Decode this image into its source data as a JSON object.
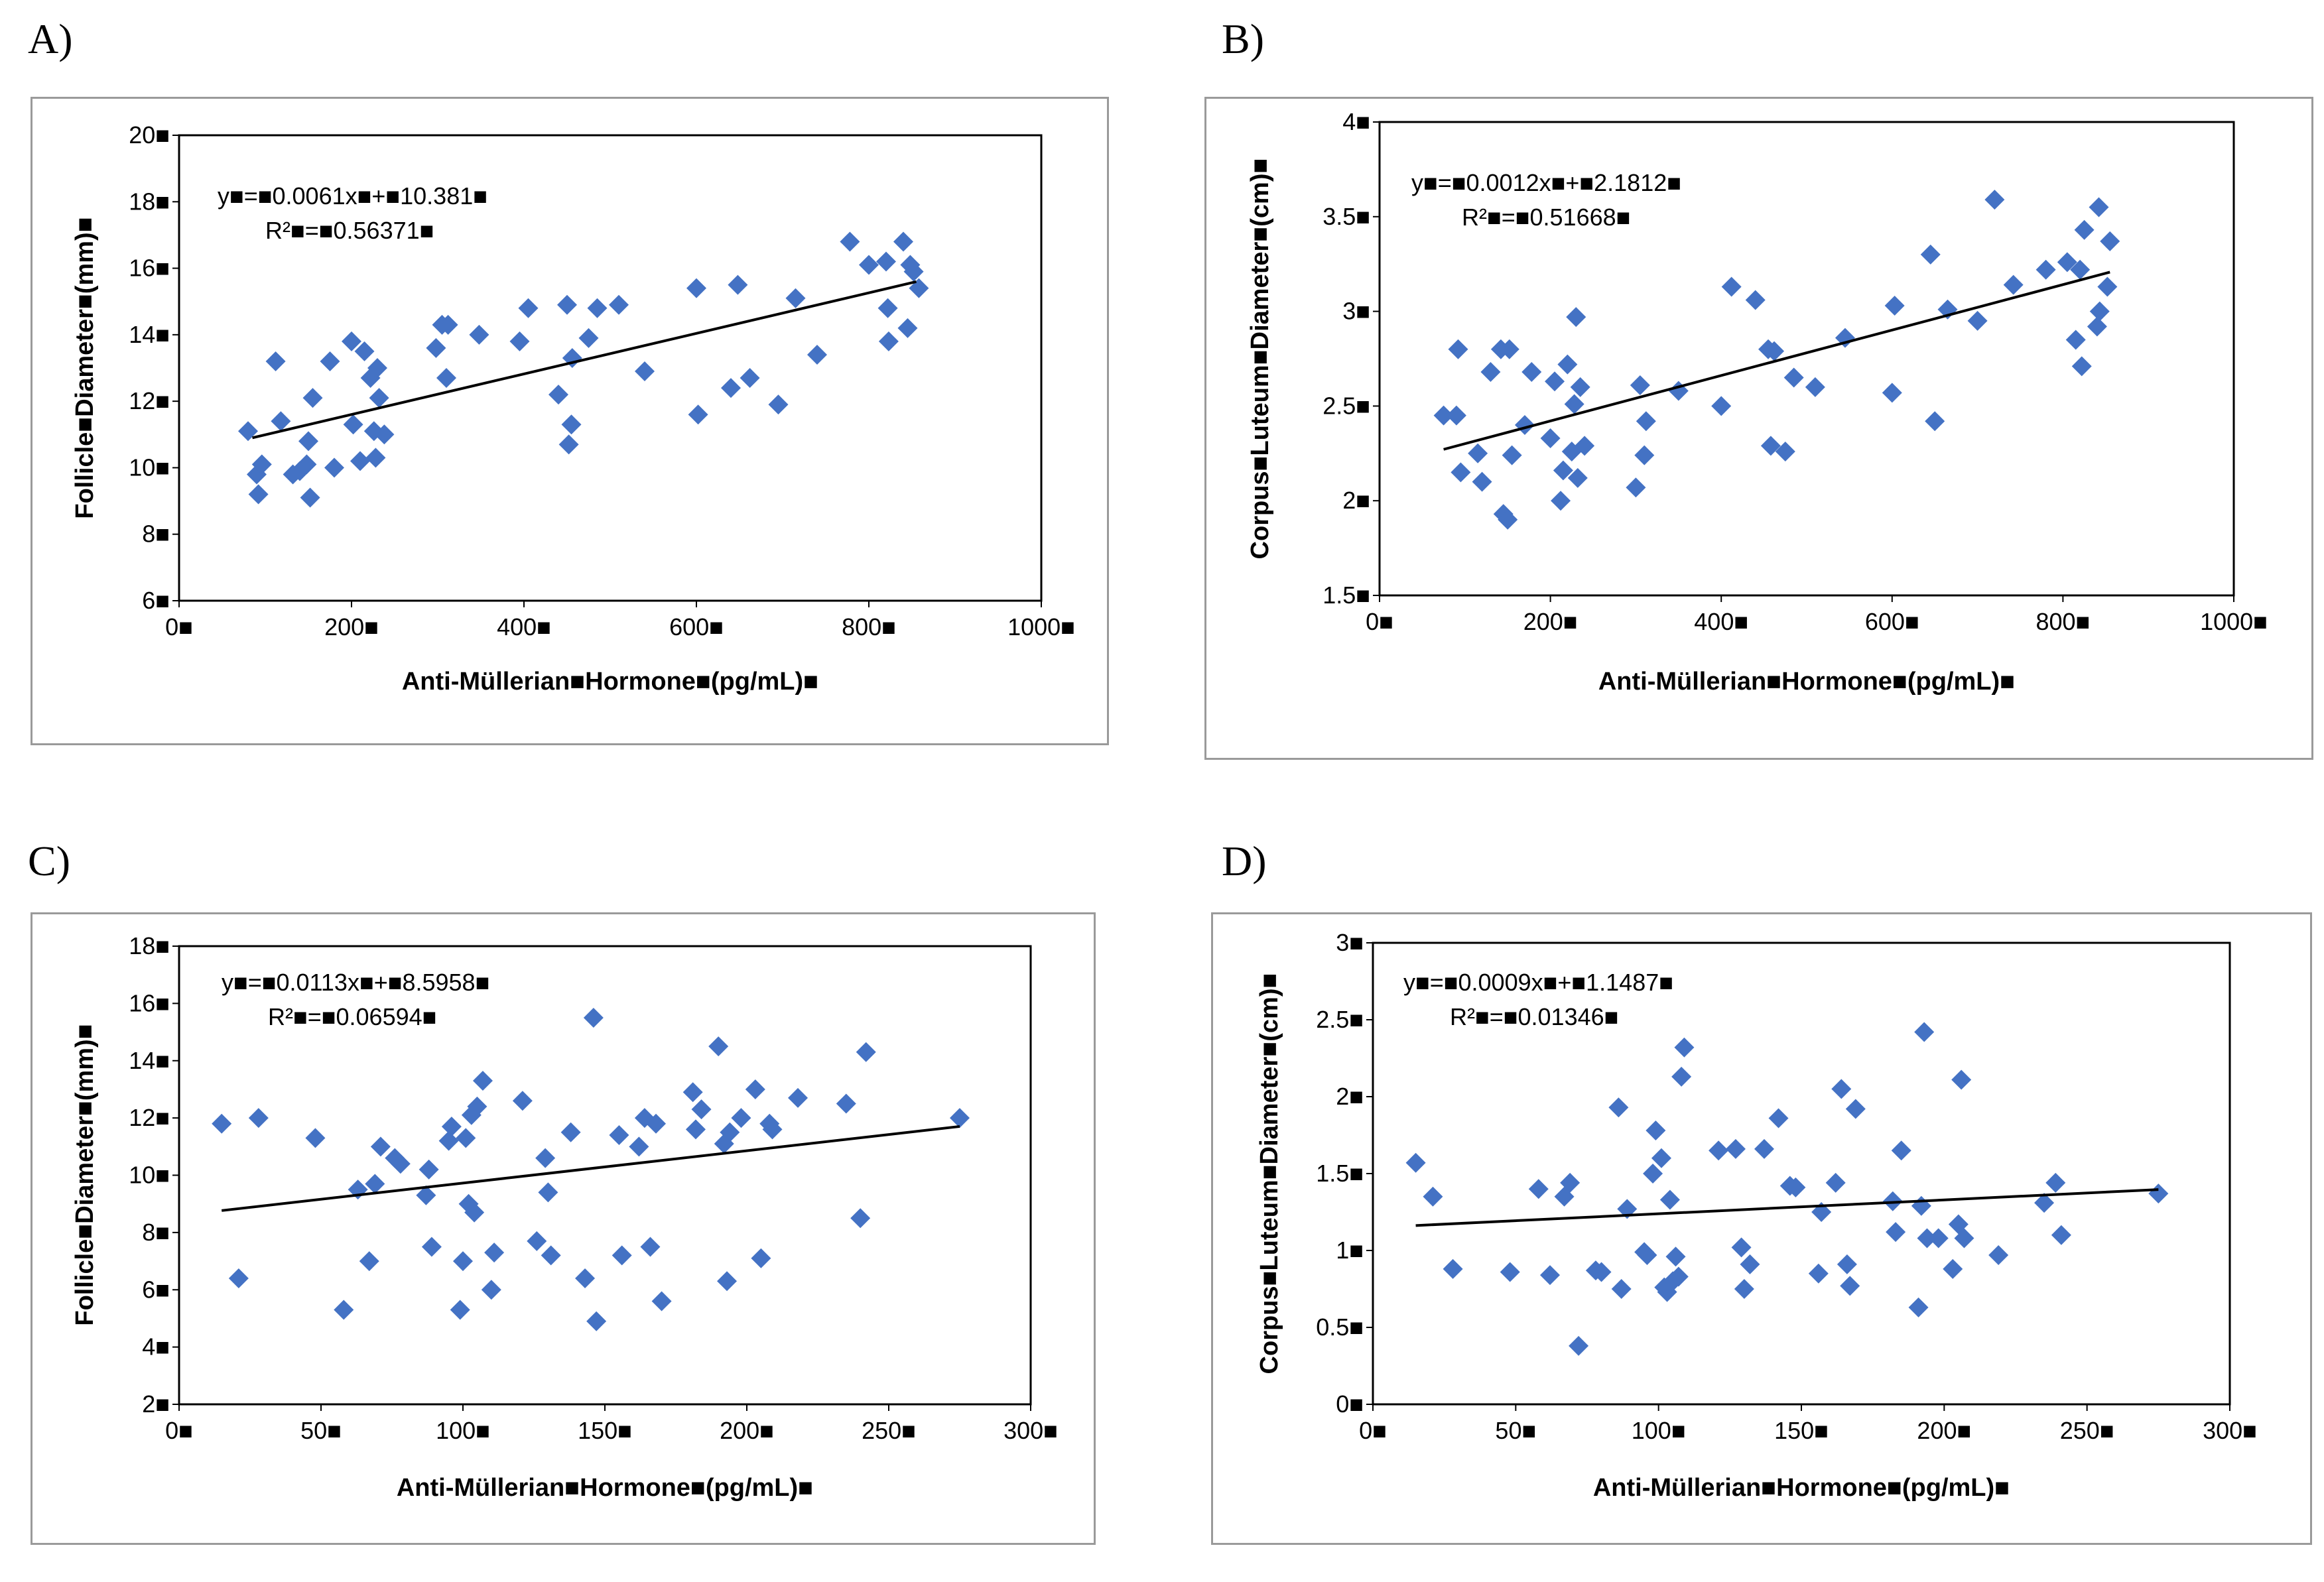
{
  "panels": [
    {
      "letter": "A)",
      "chart_data": {
        "type": "scatter",
        "xlabel": "Anti-Müllerian■Hormone■(pg/mL)■",
        "ylabel": "Follicle■Diameter■(mm)■",
        "xlim": [
          0,
          1000
        ],
        "ylim": [
          6,
          20
        ],
        "xticks": [
          0,
          200,
          400,
          600,
          800,
          1000
        ],
        "yticks": [
          6,
          8,
          10,
          12,
          14,
          16,
          18,
          20
        ],
        "xtick_labels": [
          "0■",
          "200■",
          "400■",
          "600■",
          "800■",
          "1000■"
        ],
        "ytick_labels": [
          "6■",
          "8■",
          "10■",
          "12■",
          "14■",
          "16■",
          "18■",
          "20■"
        ],
        "equation": "y■=■0.0061x■+■10.381■",
        "r2": "R²■=■0.56371■",
        "trendline": {
          "slope": 0.0061,
          "intercept": 10.381,
          "x_range": [
            85,
            855
          ]
        },
        "marker_color": "#4472c4",
        "points": [
          [
            80,
            11.1
          ],
          [
            90,
            9.8
          ],
          [
            92,
            9.2
          ],
          [
            96,
            10.1
          ],
          [
            112,
            13.2
          ],
          [
            118,
            11.4
          ],
          [
            132,
            9.8
          ],
          [
            140,
            9.9
          ],
          [
            148,
            10.1
          ],
          [
            150,
            10.8
          ],
          [
            152,
            9.1
          ],
          [
            155,
            12.1
          ],
          [
            175,
            13.2
          ],
          [
            180,
            10.0
          ],
          [
            200,
            13.8
          ],
          [
            202,
            11.3
          ],
          [
            210,
            10.2
          ],
          [
            215,
            13.5
          ],
          [
            222,
            12.7
          ],
          [
            226,
            11.1
          ],
          [
            228,
            10.3
          ],
          [
            230,
            13.0
          ],
          [
            232,
            12.1
          ],
          [
            238,
            11.0
          ],
          [
            298,
            13.6
          ],
          [
            305,
            14.3
          ],
          [
            310,
            12.7
          ],
          [
            312,
            14.3
          ],
          [
            348,
            14.0
          ],
          [
            395,
            13.8
          ],
          [
            405,
            14.8
          ],
          [
            440,
            12.2
          ],
          [
            450,
            14.9
          ],
          [
            452,
            10.7
          ],
          [
            455,
            11.3
          ],
          [
            456,
            13.3
          ],
          [
            475,
            13.9
          ],
          [
            485,
            14.8
          ],
          [
            510,
            14.9
          ],
          [
            540,
            12.9
          ],
          [
            600,
            15.4
          ],
          [
            602,
            11.6
          ],
          [
            640,
            12.4
          ],
          [
            648,
            15.5
          ],
          [
            662,
            12.7
          ],
          [
            695,
            11.9
          ],
          [
            715,
            15.1
          ],
          [
            740,
            13.4
          ],
          [
            778,
            16.8
          ],
          [
            800,
            16.1
          ],
          [
            820,
            16.2
          ],
          [
            822,
            14.8
          ],
          [
            823,
            13.8
          ],
          [
            840,
            16.8
          ],
          [
            845,
            14.2
          ],
          [
            848,
            16.1
          ],
          [
            852,
            15.9
          ],
          [
            858,
            15.4
          ]
        ]
      }
    },
    {
      "letter": "B)",
      "chart_data": {
        "type": "scatter",
        "xlabel": "Anti-Müllerian■Hormone■(pg/mL)■",
        "ylabel": "Corpus■Luteum■Diameter■(cm)■",
        "xlim": [
          0,
          1000
        ],
        "ylim": [
          1.5,
          4
        ],
        "xticks": [
          0,
          200,
          400,
          600,
          800,
          1000
        ],
        "yticks": [
          1.5,
          2,
          2.5,
          3,
          3.5,
          4
        ],
        "xtick_labels": [
          "0■",
          "200■",
          "400■",
          "600■",
          "800■",
          "1000■"
        ],
        "ytick_labels": [
          "1.5■",
          "2■",
          "2.5■",
          "3■",
          "3.5■",
          "4■"
        ],
        "equation": "y■=■0.0012x■+■2.1812■",
        "r2": "R²■=■0.51668■",
        "trendline": {
          "slope": 0.0012,
          "intercept": 2.1812,
          "x_range": [
            75,
            855
          ]
        },
        "marker_color": "#4472c4",
        "points": [
          [
            75,
            2.45
          ],
          [
            90,
            2.45
          ],
          [
            92,
            2.8
          ],
          [
            95,
            2.15
          ],
          [
            115,
            2.25
          ],
          [
            120,
            2.1
          ],
          [
            130,
            2.68
          ],
          [
            142,
            2.8
          ],
          [
            145,
            1.93
          ],
          [
            150,
            1.9
          ],
          [
            152,
            2.8
          ],
          [
            155,
            2.24
          ],
          [
            170,
            2.4
          ],
          [
            178,
            2.68
          ],
          [
            200,
            2.33
          ],
          [
            205,
            2.63
          ],
          [
            212,
            2.0
          ],
          [
            215,
            2.16
          ],
          [
            220,
            2.72
          ],
          [
            225,
            2.26
          ],
          [
            228,
            2.51
          ],
          [
            230,
            2.97
          ],
          [
            232,
            2.12
          ],
          [
            235,
            2.6
          ],
          [
            240,
            2.29
          ],
          [
            300,
            2.07
          ],
          [
            305,
            2.61
          ],
          [
            310,
            2.24
          ],
          [
            312,
            2.42
          ],
          [
            350,
            2.58
          ],
          [
            400,
            2.5
          ],
          [
            412,
            3.13
          ],
          [
            440,
            3.06
          ],
          [
            455,
            2.8
          ],
          [
            458,
            2.29
          ],
          [
            462,
            2.79
          ],
          [
            475,
            2.26
          ],
          [
            485,
            2.65
          ],
          [
            510,
            2.6
          ],
          [
            545,
            2.86
          ],
          [
            600,
            2.57
          ],
          [
            603,
            3.03
          ],
          [
            645,
            3.3
          ],
          [
            650,
            2.42
          ],
          [
            665,
            3.01
          ],
          [
            700,
            2.95
          ],
          [
            720,
            3.59
          ],
          [
            742,
            3.14
          ],
          [
            780,
            3.22
          ],
          [
            805,
            3.26
          ],
          [
            815,
            2.85
          ],
          [
            820,
            3.22
          ],
          [
            822,
            2.71
          ],
          [
            825,
            3.43
          ],
          [
            840,
            2.92
          ],
          [
            842,
            3.55
          ],
          [
            843,
            3.0
          ],
          [
            852,
            3.13
          ],
          [
            855,
            3.37
          ]
        ]
      }
    },
    {
      "letter": "C)",
      "chart_data": {
        "type": "scatter",
        "xlabel": "Anti-Müllerian■Hormone■(pg/mL)■",
        "ylabel": "Follicle■Diameter■(mm)■",
        "xlim": [
          0,
          300
        ],
        "ylim": [
          2,
          18
        ],
        "xticks": [
          0,
          50,
          100,
          150,
          200,
          250,
          300
        ],
        "yticks": [
          2,
          4,
          6,
          8,
          10,
          12,
          14,
          16,
          18
        ],
        "xtick_labels": [
          "0■",
          "50■",
          "100■",
          "150■",
          "200■",
          "250■",
          "300■"
        ],
        "ytick_labels": [
          "2■",
          "4■",
          "6■",
          "8■",
          "10■",
          "12■",
          "14■",
          "16■",
          "18■"
        ],
        "equation": "y■=■0.0113x■+■8.5958■",
        "r2": "R²■=■0.06594■",
        "trendline": {
          "slope": 0.0113,
          "intercept": 8.5958,
          "x_range": [
            15,
            275
          ]
        },
        "marker_color": "#4472c4",
        "points": [
          [
            15,
            11.8
          ],
          [
            21,
            6.4
          ],
          [
            28,
            12.0
          ],
          [
            48,
            11.3
          ],
          [
            58,
            5.3
          ],
          [
            63,
            9.5
          ],
          [
            67,
            7.0
          ],
          [
            69,
            9.7
          ],
          [
            71,
            11.0
          ],
          [
            76,
            10.6
          ],
          [
            78,
            10.4
          ],
          [
            87,
            9.3
          ],
          [
            88,
            10.2
          ],
          [
            89,
            7.5
          ],
          [
            95,
            11.2
          ],
          [
            96,
            11.7
          ],
          [
            99,
            5.3
          ],
          [
            100,
            7.0
          ],
          [
            101,
            11.3
          ],
          [
            102,
            9.0
          ],
          [
            103,
            12.1
          ],
          [
            104,
            8.7
          ],
          [
            105,
            12.4
          ],
          [
            107,
            13.3
          ],
          [
            110,
            6.0
          ],
          [
            111,
            7.3
          ],
          [
            121,
            12.6
          ],
          [
            126,
            7.7
          ],
          [
            129,
            10.6
          ],
          [
            130,
            9.4
          ],
          [
            131,
            7.2
          ],
          [
            138,
            11.5
          ],
          [
            143,
            6.4
          ],
          [
            146,
            15.5
          ],
          [
            147,
            4.9
          ],
          [
            155,
            11.4
          ],
          [
            156,
            7.2
          ],
          [
            162,
            11.0
          ],
          [
            164,
            12.0
          ],
          [
            166,
            7.5
          ],
          [
            168,
            11.8
          ],
          [
            170,
            5.6
          ],
          [
            181,
            12.9
          ],
          [
            182,
            11.6
          ],
          [
            184,
            12.3
          ],
          [
            190,
            14.5
          ],
          [
            192,
            11.1
          ],
          [
            193,
            6.3
          ],
          [
            194,
            11.5
          ],
          [
            198,
            12.0
          ],
          [
            203,
            13.0
          ],
          [
            205,
            7.1
          ],
          [
            208,
            11.8
          ],
          [
            209,
            11.6
          ],
          [
            218,
            12.7
          ],
          [
            235,
            12.5
          ],
          [
            240,
            8.5
          ],
          [
            242,
            14.3
          ],
          [
            275,
            12.0
          ]
        ]
      }
    },
    {
      "letter": "D)",
      "chart_data": {
        "type": "scatter",
        "xlabel": "Anti-Müllerian■Hormone■(pg/mL)■",
        "ylabel": "Corpus■Luteum■Diameter■(cm)■",
        "xlim": [
          0,
          300
        ],
        "ylim": [
          0,
          3
        ],
        "xticks": [
          0,
          50,
          100,
          150,
          200,
          250,
          300
        ],
        "yticks": [
          0,
          0.5,
          1,
          1.5,
          2,
          2.5,
          3
        ],
        "xtick_labels": [
          "0■",
          "50■",
          "100■",
          "150■",
          "200■",
          "250■",
          "300■"
        ],
        "ytick_labels": [
          "0■",
          "0.5■",
          "1■",
          "1.5■",
          "2■",
          "2.5■",
          "3■"
        ],
        "equation": "y■=■0.0009x■+■1.1487■",
        "r2": "R²■=■0.01346■",
        "trendline": {
          "slope": 0.0009,
          "intercept": 1.1487,
          "x_range": [
            15,
            275
          ]
        },
        "marker_color": "#4472c4",
        "points": [
          [
            15,
            1.57
          ],
          [
            21,
            1.35
          ],
          [
            28,
            0.88
          ],
          [
            48,
            0.86
          ],
          [
            58,
            1.4
          ],
          [
            62,
            0.84
          ],
          [
            67,
            1.35
          ],
          [
            69,
            1.44
          ],
          [
            72,
            0.38
          ],
          [
            78,
            0.87
          ],
          [
            80,
            0.86
          ],
          [
            86,
            1.93
          ],
          [
            87,
            0.75
          ],
          [
            89,
            1.27
          ],
          [
            95,
            0.99
          ],
          [
            96,
            0.97
          ],
          [
            98,
            1.5
          ],
          [
            99,
            1.78
          ],
          [
            101,
            1.6
          ],
          [
            102,
            0.76
          ],
          [
            103,
            0.73
          ],
          [
            104,
            1.33
          ],
          [
            105,
            0.8
          ],
          [
            106,
            0.96
          ],
          [
            107,
            0.83
          ],
          [
            108,
            2.13
          ],
          [
            109,
            2.32
          ],
          [
            121,
            1.65
          ],
          [
            127,
            1.66
          ],
          [
            129,
            1.02
          ],
          [
            130,
            0.75
          ],
          [
            132,
            0.91
          ],
          [
            137,
            1.66
          ],
          [
            142,
            1.86
          ],
          [
            146,
            1.42
          ],
          [
            148,
            1.41
          ],
          [
            156,
            0.85
          ],
          [
            157,
            1.25
          ],
          [
            162,
            1.44
          ],
          [
            164,
            2.05
          ],
          [
            166,
            0.91
          ],
          [
            167,
            0.77
          ],
          [
            169,
            1.92
          ],
          [
            182,
            1.32
          ],
          [
            183,
            1.12
          ],
          [
            185,
            1.65
          ],
          [
            191,
            0.63
          ],
          [
            192,
            1.29
          ],
          [
            193,
            2.42
          ],
          [
            194,
            1.08
          ],
          [
            198,
            1.08
          ],
          [
            203,
            0.88
          ],
          [
            205,
            1.17
          ],
          [
            206,
            2.11
          ],
          [
            207,
            1.08
          ],
          [
            219,
            0.97
          ],
          [
            235,
            1.31
          ],
          [
            239,
            1.44
          ],
          [
            241,
            1.1
          ],
          [
            275,
            1.37
          ]
        ]
      }
    }
  ]
}
